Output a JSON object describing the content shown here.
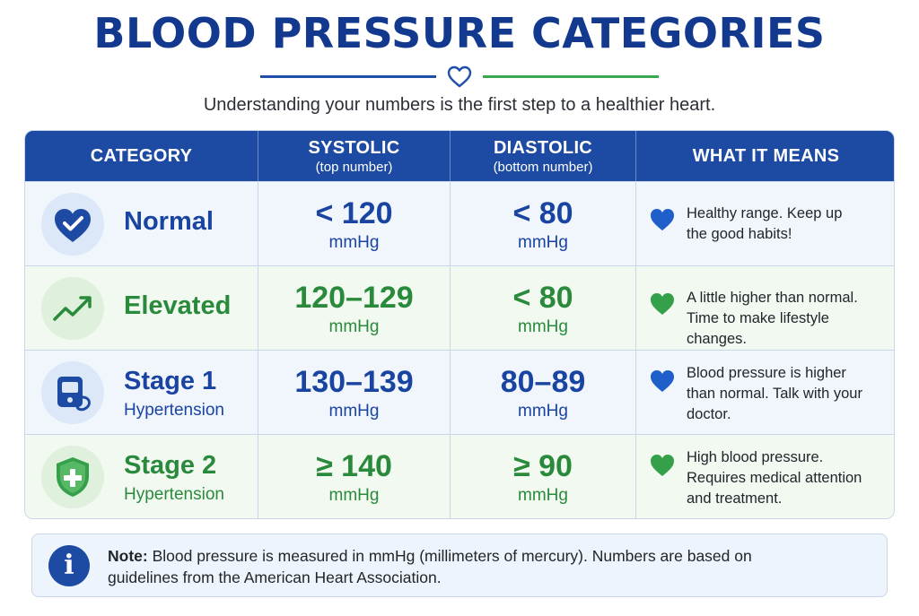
{
  "title": "BLOOD PRESSURE CATEGORIES",
  "subtitle": "Understanding your numbers is the first step to a healthier heart.",
  "colors": {
    "navy": "#1d4aa3",
    "blue": "#1a44a1",
    "green": "#2a8a3c"
  },
  "table": {
    "headers": [
      {
        "main": "CATEGORY",
        "sub": ""
      },
      {
        "main": "SYSTOLIC",
        "sub": "(top number)"
      },
      {
        "main": "DIASTOLIC",
        "sub": "(bottom number)"
      },
      {
        "main": "WHAT IT MEANS",
        "sub": ""
      }
    ],
    "rows": [
      {
        "icon": "heart-check-icon",
        "name": "Normal",
        "sub": "",
        "systolic": "< 120",
        "diastolic": "< 80",
        "unit": "mmHg",
        "meaning": "Healthy range. Keep up the good habits!",
        "meaning_icon": "heart-icon"
      },
      {
        "icon": "trend-up-icon",
        "name": "Elevated",
        "sub": "",
        "systolic": "120–129",
        "diastolic": "< 80",
        "unit": "mmHg",
        "meaning": "A little higher than normal. Time to make lifestyle changes.",
        "meaning_icon": "heart-icon"
      },
      {
        "icon": "bp-monitor-icon",
        "name": "Stage 1",
        "sub": "Hypertension",
        "systolic": "130–139",
        "diastolic": "80–89",
        "unit": "mmHg",
        "meaning": "Blood pressure is higher than normal. Talk with your doctor.",
        "meaning_icon": "heart-icon"
      },
      {
        "icon": "shield-plus-icon",
        "name": "Stage 2",
        "sub": "Hypertension",
        "systolic": "≥ 140",
        "diastolic": "≥ 90",
        "unit": "mmHg",
        "meaning": "High blood pressure. Requires medical attention and treatment.",
        "meaning_icon": "heart-icon"
      }
    ]
  },
  "note": {
    "icon": "info-icon",
    "glyph": "i",
    "label": "Note:",
    "text": " Blood pressure is measured in mmHg (millimeters of mercury). Numbers are based on guidelines from the American Heart Association."
  }
}
